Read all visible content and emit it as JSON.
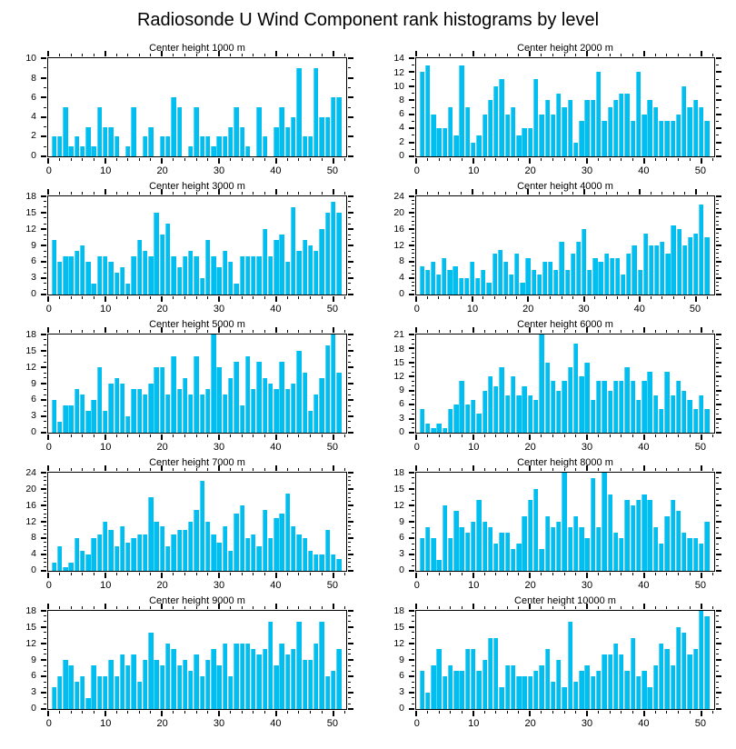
{
  "page_title": "Radiosonde U Wind Component rank histograms by level",
  "colors": {
    "bar": "#00bef0",
    "axis": "#000000",
    "background": "#ffffff",
    "text": "#000000"
  },
  "chart_data": [
    {
      "type": "bar",
      "title": "Center height 1000 m",
      "xlabel": "",
      "ylabel": "",
      "legend": "none",
      "grid": false,
      "x_start_rank": 1,
      "x_tick_labels": [
        0,
        10,
        20,
        30,
        40,
        50
      ],
      "x_minor_step": 2,
      "ylim": [
        0,
        10
      ],
      "yticks": [
        0,
        2,
        4,
        6,
        8,
        10
      ],
      "y_minor_step": 1,
      "values": [
        2,
        2,
        5,
        1,
        2,
        1,
        3,
        1,
        5,
        3,
        3,
        2,
        0,
        1,
        5,
        0,
        2,
        3,
        0,
        2,
        2,
        6,
        5,
        0,
        1,
        5,
        2,
        2,
        1,
        2,
        2,
        3,
        5,
        3,
        1,
        0,
        5,
        2,
        0,
        3,
        5,
        3,
        4,
        9,
        2,
        2,
        9,
        4,
        4,
        6,
        6
      ]
    },
    {
      "type": "bar",
      "title": "Center height 2000 m",
      "xlabel": "",
      "ylabel": "",
      "legend": "none",
      "grid": false,
      "x_start_rank": 1,
      "x_tick_labels": [
        0,
        10,
        20,
        30,
        40,
        50
      ],
      "x_minor_step": 2,
      "ylim": [
        0,
        14
      ],
      "yticks": [
        0,
        2,
        4,
        6,
        8,
        10,
        12,
        14
      ],
      "y_minor_step": 1,
      "values": [
        12,
        13,
        6,
        4,
        4,
        7,
        3,
        13,
        7,
        2,
        3,
        6,
        8,
        10,
        11,
        6,
        7,
        3,
        4,
        4,
        11,
        6,
        8,
        6,
        9,
        7,
        8,
        2,
        5,
        8,
        8,
        12,
        5,
        7,
        8,
        9,
        9,
        5,
        12,
        6,
        8,
        7,
        5,
        5,
        5,
        6,
        10,
        7,
        8,
        7,
        5
      ]
    },
    {
      "type": "bar",
      "title": "Center height 3000 m",
      "xlabel": "",
      "ylabel": "",
      "legend": "none",
      "grid": false,
      "x_start_rank": 1,
      "x_tick_labels": [
        0,
        10,
        20,
        30,
        40,
        50
      ],
      "x_minor_step": 2,
      "ylim": [
        0,
        18
      ],
      "yticks": [
        0,
        3,
        6,
        9,
        12,
        15,
        18
      ],
      "y_minor_step": 1,
      "values": [
        10,
        6,
        7,
        7,
        8,
        9,
        6,
        2,
        7,
        7,
        6,
        4,
        5,
        2,
        7,
        10,
        8,
        7,
        15,
        11,
        13,
        7,
        5,
        7,
        8,
        7,
        3,
        10,
        7,
        5,
        8,
        6,
        2,
        7,
        7,
        7,
        7,
        12,
        7,
        10,
        11,
        6,
        16,
        8,
        10,
        9,
        8,
        12,
        15,
        17,
        15
      ]
    },
    {
      "type": "bar",
      "title": "Center height 4000 m",
      "xlabel": "",
      "ylabel": "",
      "legend": "none",
      "grid": false,
      "x_start_rank": 1,
      "x_tick_labels": [
        0,
        10,
        20,
        30,
        40,
        50
      ],
      "x_minor_step": 2,
      "ylim": [
        0,
        24
      ],
      "yticks": [
        0,
        4,
        8,
        12,
        16,
        20,
        24
      ],
      "y_minor_step": 1,
      "values": [
        7,
        6,
        8,
        5,
        9,
        6,
        7,
        4,
        4,
        8,
        4,
        6,
        3,
        10,
        11,
        8,
        5,
        10,
        3,
        9,
        6,
        5,
        8,
        8,
        6,
        13,
        6,
        10,
        13,
        16,
        6,
        9,
        8,
        10,
        9,
        9,
        5,
        10,
        12,
        6,
        15,
        12,
        12,
        13,
        10,
        17,
        16,
        12,
        14,
        15,
        22,
        14
      ]
    },
    {
      "type": "bar",
      "title": "Center height 5000 m",
      "xlabel": "",
      "ylabel": "",
      "legend": "none",
      "grid": false,
      "x_start_rank": 1,
      "x_tick_labels": [
        0,
        10,
        20,
        30,
        40,
        50
      ],
      "x_minor_step": 2,
      "ylim": [
        0,
        18
      ],
      "yticks": [
        0,
        3,
        6,
        9,
        12,
        15,
        18
      ],
      "y_minor_step": 1,
      "values": [
        6,
        2,
        5,
        5,
        8,
        7,
        4,
        6,
        12,
        4,
        9,
        10,
        9,
        3,
        8,
        8,
        7,
        9,
        12,
        12,
        7,
        14,
        8,
        10,
        7,
        14,
        7,
        8,
        18,
        12,
        7,
        10,
        13,
        5,
        14,
        8,
        13,
        10,
        9,
        8,
        13,
        8,
        9,
        15,
        11,
        4,
        7,
        10,
        16,
        18,
        11
      ]
    },
    {
      "type": "bar",
      "title": "Center height 6000 m",
      "xlabel": "",
      "ylabel": "",
      "legend": "none",
      "grid": false,
      "x_start_rank": 1,
      "x_tick_labels": [
        0,
        10,
        20,
        30,
        40,
        50
      ],
      "x_minor_step": 2,
      "ylim": [
        0,
        21
      ],
      "yticks": [
        0,
        3,
        6,
        9,
        12,
        15,
        18,
        21
      ],
      "y_minor_step": 1,
      "values": [
        5,
        2,
        1,
        2,
        1,
        5,
        6,
        11,
        6,
        7,
        4,
        9,
        12,
        10,
        14,
        8,
        12,
        8,
        10,
        8,
        7,
        21,
        15,
        11,
        9,
        11,
        14,
        19,
        12,
        15,
        7,
        11,
        11,
        9,
        11,
        11,
        14,
        11,
        7,
        11,
        13,
        8,
        5,
        13,
        8,
        11,
        9,
        7,
        5,
        8,
        5
      ]
    },
    {
      "type": "bar",
      "title": "Center height 7000 m",
      "xlabel": "",
      "ylabel": "",
      "legend": "none",
      "grid": false,
      "x_start_rank": 1,
      "x_tick_labels": [
        0,
        10,
        20,
        30,
        40,
        50
      ],
      "x_minor_step": 2,
      "ylim": [
        0,
        24
      ],
      "yticks": [
        0,
        4,
        8,
        12,
        16,
        20,
        24
      ],
      "y_minor_step": 1,
      "values": [
        2,
        6,
        1,
        2,
        8,
        5,
        4,
        8,
        9,
        12,
        10,
        6,
        11,
        7,
        8,
        9,
        9,
        18,
        12,
        11,
        6,
        9,
        10,
        10,
        12,
        15,
        22,
        12,
        9,
        7,
        11,
        5,
        14,
        16,
        8,
        9,
        6,
        15,
        8,
        13,
        14,
        19,
        11,
        9,
        8,
        5,
        4,
        4,
        10,
        4,
        3
      ]
    },
    {
      "type": "bar",
      "title": "Center height 8000 m",
      "xlabel": "",
      "ylabel": "",
      "legend": "none",
      "grid": false,
      "x_start_rank": 1,
      "x_tick_labels": [
        0,
        10,
        20,
        30,
        40,
        50
      ],
      "x_minor_step": 2,
      "ylim": [
        0,
        18
      ],
      "yticks": [
        0,
        3,
        6,
        9,
        12,
        15,
        18
      ],
      "y_minor_step": 1,
      "values": [
        6,
        8,
        6,
        2,
        12,
        6,
        11,
        8,
        7,
        9,
        13,
        9,
        8,
        5,
        7,
        7,
        4,
        5,
        10,
        13,
        15,
        4,
        10,
        8,
        9,
        18,
        8,
        10,
        8,
        6,
        17,
        8,
        18,
        14,
        7,
        6,
        13,
        12,
        13,
        14,
        13,
        8,
        5,
        10,
        13,
        11,
        7,
        6,
        6,
        5,
        9
      ]
    },
    {
      "type": "bar",
      "title": "Center height 9000 m",
      "xlabel": "",
      "ylabel": "",
      "legend": "none",
      "grid": false,
      "x_start_rank": 1,
      "x_tick_labels": [
        0,
        10,
        20,
        30,
        40,
        50
      ],
      "x_minor_step": 2,
      "ylim": [
        0,
        18
      ],
      "yticks": [
        0,
        3,
        6,
        9,
        12,
        15,
        18
      ],
      "y_minor_step": 1,
      "values": [
        4,
        6,
        9,
        8,
        5,
        6,
        2,
        8,
        6,
        6,
        9,
        6,
        10,
        8,
        10,
        5,
        9,
        14,
        9,
        8,
        12,
        11,
        8,
        9,
        7,
        10,
        6,
        9,
        11,
        8,
        12,
        6,
        12,
        12,
        12,
        11,
        10,
        11,
        16,
        8,
        12,
        10,
        11,
        16,
        9,
        9,
        12,
        16,
        6,
        7,
        11
      ]
    },
    {
      "type": "bar",
      "title": "Center height 10000 m",
      "xlabel": "",
      "ylabel": "",
      "legend": "none",
      "grid": false,
      "x_start_rank": 1,
      "x_tick_labels": [
        0,
        10,
        20,
        30,
        40,
        50
      ],
      "x_minor_step": 2,
      "ylim": [
        0,
        18
      ],
      "yticks": [
        0,
        3,
        6,
        9,
        12,
        15,
        18
      ],
      "y_minor_step": 1,
      "values": [
        7,
        3,
        8,
        11,
        6,
        8,
        7,
        7,
        11,
        11,
        7,
        9,
        13,
        13,
        4,
        8,
        8,
        6,
        6,
        6,
        7,
        8,
        11,
        5,
        9,
        4,
        16,
        5,
        7,
        8,
        6,
        7,
        10,
        10,
        12,
        10,
        7,
        13,
        6,
        7,
        4,
        8,
        12,
        11,
        8,
        15,
        14,
        10,
        11,
        18,
        17
      ]
    }
  ]
}
